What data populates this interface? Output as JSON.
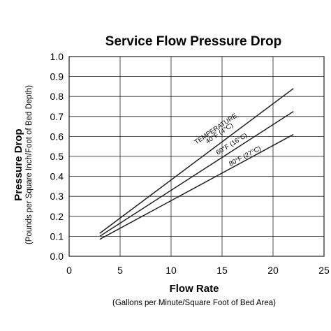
{
  "chart_data": {
    "type": "line",
    "title": "Service Flow Pressure Drop",
    "xlabel": "Flow Rate",
    "xlabel_sub": "(Gallons per Minute/Square Foot of Bed Area)",
    "ylabel": "Pressure Drop",
    "ylabel_sub": "(Pounds per Square Inch/Foot of Bed Depth)",
    "xlim": [
      0,
      25
    ],
    "ylim": [
      0.0,
      1.0
    ],
    "x_ticks": [
      "0",
      "5",
      "10",
      "15",
      "20",
      "25"
    ],
    "y_ticks": [
      "0.0",
      "0.1",
      "0.2",
      "0.3",
      "0.4",
      "0.5",
      "0.6",
      "0.7",
      "0.8",
      "0.9",
      "1.0"
    ],
    "grid": true,
    "series_color": "#231f20",
    "annotation_header": "TEMPERATURE",
    "series": [
      {
        "name": "40°F (4°C)",
        "x": [
          3,
          22
        ],
        "y": [
          0.115,
          0.84
        ]
      },
      {
        "name": "60°F (16°C)",
        "x": [
          3,
          22
        ],
        "y": [
          0.1,
          0.725
        ]
      },
      {
        "name": "80°F (27°C)",
        "x": [
          3,
          22
        ],
        "y": [
          0.085,
          0.61
        ]
      }
    ]
  }
}
